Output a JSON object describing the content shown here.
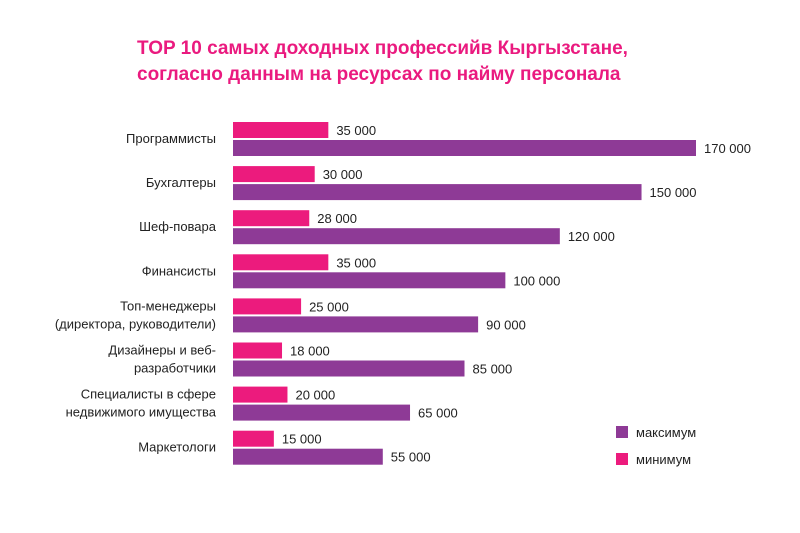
{
  "title": {
    "line1": "TOP 10 самых доходных профессийв Кыргызстане,",
    "line2": "согласно данным на ресурсах по найму персонала"
  },
  "colors": {
    "minimum": "#ec1b7d",
    "maximum": "#8e3a96"
  },
  "legend": {
    "max_label": "максимум",
    "min_label": "минимум"
  },
  "chart_data": {
    "type": "bar",
    "orientation": "horizontal",
    "title": "TOP 10 самых доходных профессийв Кыргызстане, согласно данным на ресурсах по найму персонала",
    "categories": [
      [
        "Программисты"
      ],
      [
        "Бухгалтеры"
      ],
      [
        "Шеф-повара"
      ],
      [
        "Финансисты"
      ],
      [
        "Топ-менеджеры",
        "(директора, руководители)"
      ],
      [
        "Дизайнеры и веб-",
        "разработчики"
      ],
      [
        "Специалисты в сфере",
        "недвижимого имущества"
      ],
      [
        "Маркетологи"
      ]
    ],
    "series": [
      {
        "name": "минимум",
        "values": [
          35000,
          30000,
          28000,
          35000,
          25000,
          18000,
          20000,
          15000
        ],
        "labels": [
          "35 000",
          "30 000",
          "28 000",
          "35 000",
          "25 000",
          "18 000",
          "20 000",
          "15 000"
        ]
      },
      {
        "name": "максимум",
        "values": [
          170000,
          150000,
          120000,
          100000,
          90000,
          85000,
          65000,
          55000
        ],
        "labels": [
          "170 000",
          "150 000",
          "120 000",
          "100 000",
          "90 000",
          "85 000",
          "65 000",
          "55 000"
        ]
      }
    ],
    "xlim": [
      0,
      170000
    ],
    "grid": false,
    "legend_position": "bottom-right"
  }
}
